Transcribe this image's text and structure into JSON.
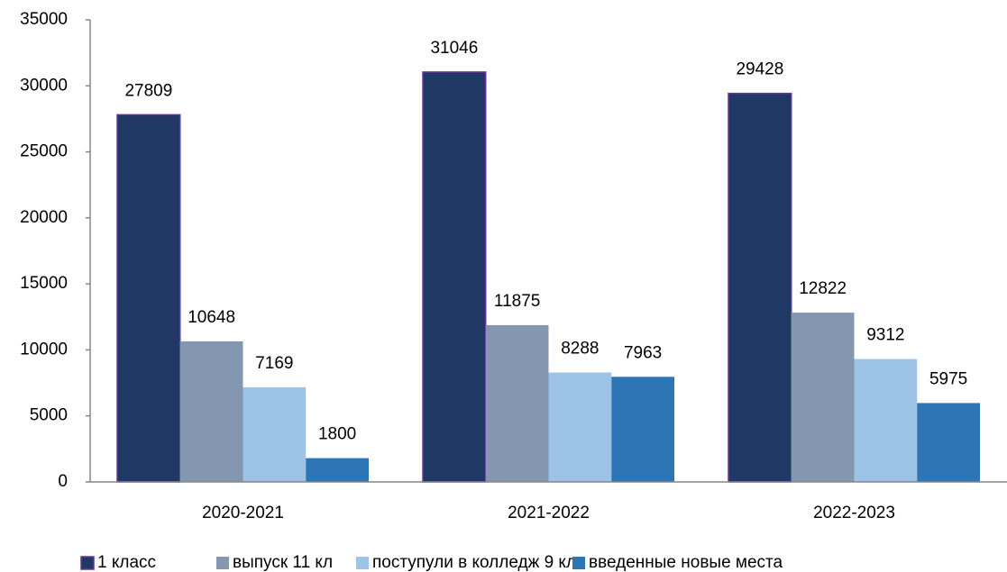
{
  "chart_data": {
    "type": "bar",
    "categories": [
      "2020-2021",
      "2021-2022",
      "2022-2023"
    ],
    "series": [
      {
        "name": "1 класс",
        "color": "#203864",
        "edge": "#7030a0",
        "values": [
          27809,
          31046,
          29428
        ]
      },
      {
        "name": "выпуск 11 кл",
        "color": "#8497b0",
        "values": [
          10648,
          11875,
          12822
        ]
      },
      {
        "name": "поступули в колледж 9 кл",
        "color": "#9dc3e6",
        "values": [
          7169,
          8288,
          9312
        ]
      },
      {
        "name": "введенные новые места",
        "color": "#2e75b6",
        "values": [
          1800,
          7963,
          5975
        ]
      }
    ],
    "ylim": [
      0,
      35000
    ],
    "yticks": [
      0,
      5000,
      10000,
      15000,
      20000,
      25000,
      30000,
      35000
    ],
    "grid": false,
    "legend": "bottom"
  }
}
